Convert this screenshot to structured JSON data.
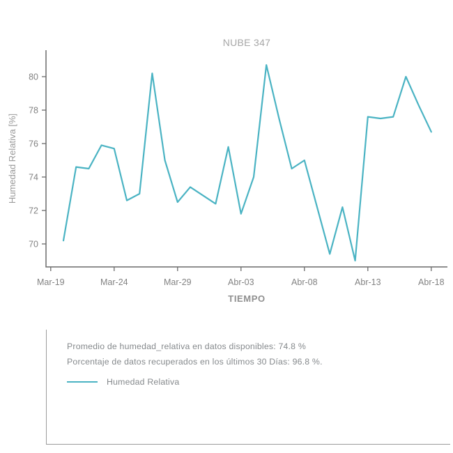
{
  "chart": {
    "title": "NUBE 347",
    "x_title": "TIEMPO",
    "y_title": "Humedad Relativa [%]",
    "y_ticks": [
      80,
      78,
      76,
      74,
      72,
      70
    ],
    "x_ticks": [
      "Mar-19",
      "Mar-24",
      "Mar-29",
      "Abr-03",
      "Abr-08",
      "Abr-13",
      "Abr-18"
    ],
    "colors": {
      "line": "#4ab3c3",
      "axis": "#6a6a6a",
      "tick_label": "#828282",
      "title": "#a6a6a6",
      "axis_title": "#8f8f8f"
    }
  },
  "chart_data": {
    "type": "line",
    "title": "NUBE 347",
    "xlabel": "TIEMPO",
    "ylabel": "Humedad Relativa [%]",
    "x": [
      "Mar-20",
      "Mar-21",
      "Mar-22",
      "Mar-23",
      "Mar-24",
      "Mar-25",
      "Mar-26",
      "Mar-27",
      "Mar-28",
      "Mar-29",
      "Mar-30",
      "Mar-31",
      "Abr-01",
      "Abr-02",
      "Abr-03",
      "Abr-04",
      "Abr-05",
      "Abr-06",
      "Abr-07",
      "Abr-08",
      "Abr-09",
      "Abr-10",
      "Abr-11",
      "Abr-12",
      "Abr-13",
      "Abr-14",
      "Abr-15",
      "Abr-16",
      "Abr-17",
      "Abr-18"
    ],
    "series": [
      {
        "name": "Humedad Relativa",
        "values": [
          70.2,
          74.6,
          74.5,
          75.9,
          75.7,
          72.6,
          73.0,
          80.2,
          75.0,
          72.5,
          73.4,
          72.9,
          72.4,
          75.8,
          71.8,
          74.0,
          80.7,
          77.5,
          74.5,
          75.0,
          72.2,
          69.4,
          72.2,
          69.0,
          77.6,
          77.5,
          77.6,
          80.0,
          78.3,
          76.7
        ]
      }
    ],
    "xtick_labels": [
      "Mar-19",
      "Mar-24",
      "Mar-29",
      "Abr-03",
      "Abr-08",
      "Abr-13",
      "Abr-18"
    ],
    "ylim": [
      68.6,
      81.6
    ],
    "grid": false,
    "legend_position": "below-in-annotation-box"
  },
  "info_box": {
    "line1": "Promedio de humedad_relativa en datos disponibles: 74.8 %",
    "line2": "Porcentaje de datos recuperados en los últimos 30 Días: 96.8 %.",
    "legend_label": "Humedad Relativa",
    "text_color": "#85898c",
    "border_color": "#9b9b9b"
  }
}
